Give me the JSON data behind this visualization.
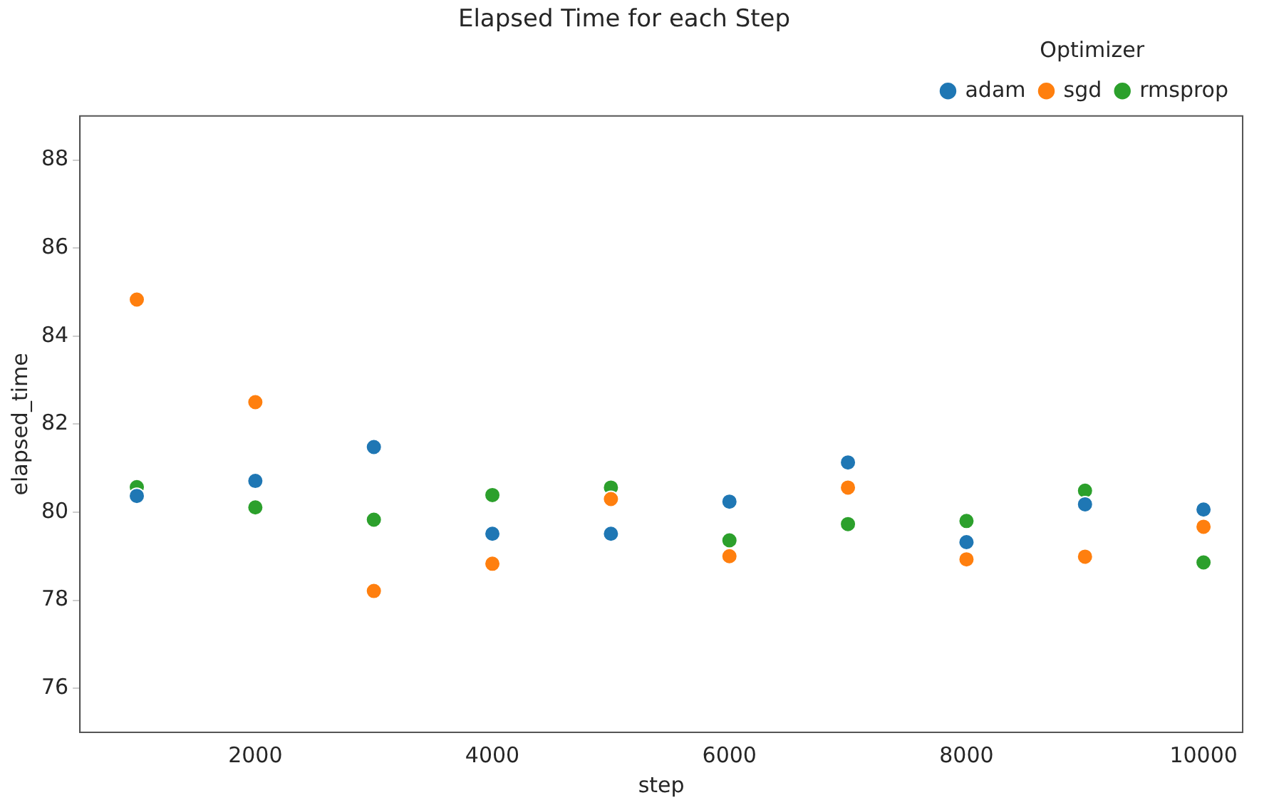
{
  "chart_data": {
    "type": "scatter",
    "title": "Elapsed Time for each Step",
    "xlabel": "step",
    "ylabel": "elapsed_time",
    "legend_title": "Optimizer",
    "legend": "top right",
    "marker": "circle",
    "grid": false,
    "x": [
      1000,
      2000,
      3000,
      4000,
      5000,
      6000,
      7000,
      8000,
      9000,
      10000
    ],
    "xlim": [
      520,
      10330
    ],
    "xticks": [
      2000,
      4000,
      6000,
      8000,
      10000
    ],
    "ylim": [
      75,
      89
    ],
    "yticks": [
      76,
      78,
      80,
      82,
      84,
      86,
      88
    ],
    "series": [
      {
        "name": "adam",
        "color": "#1f77b4",
        "values": [
          80.37,
          80.71,
          81.48,
          79.51,
          79.51,
          80.24,
          81.13,
          79.32,
          80.18,
          80.06
        ]
      },
      {
        "name": "sgd",
        "color": "#ff7f0e",
        "values": [
          84.83,
          82.5,
          78.21,
          78.83,
          80.3,
          79.0,
          80.56,
          78.93,
          78.99,
          79.67
        ]
      },
      {
        "name": "rmsprop",
        "color": "#2ca02c",
        "values": [
          80.57,
          80.11,
          79.83,
          80.39,
          80.56,
          79.36,
          79.73,
          79.8,
          80.49,
          78.86
        ]
      }
    ]
  }
}
